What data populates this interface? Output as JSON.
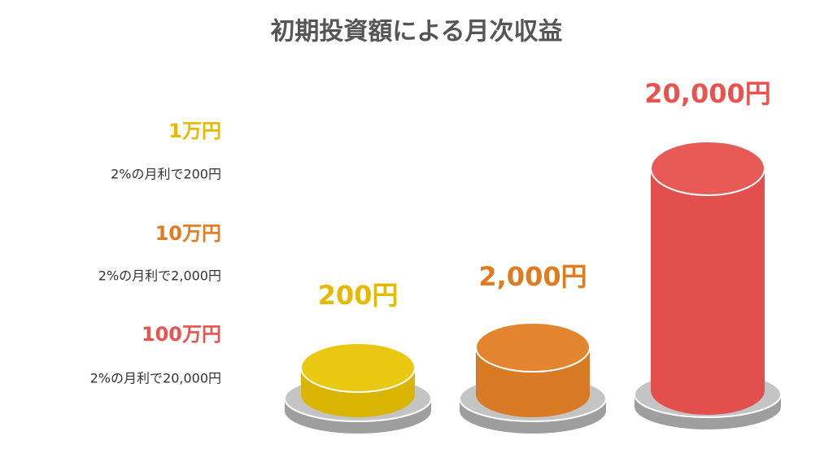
{
  "title": "初期投資額による月次収益",
  "items": [
    {
      "amount": "1万円",
      "description": "2%の月利で200円",
      "result": "200円"
    },
    {
      "amount": "10万円",
      "description": "2%の月利で2,000円",
      "result": "2,000円"
    },
    {
      "amount": "100万円",
      "description": "2%の月利で20,000円",
      "result": "20,000円"
    }
  ]
}
